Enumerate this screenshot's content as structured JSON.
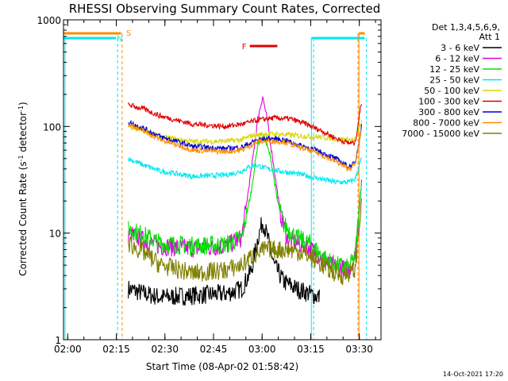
{
  "chart_data": {
    "type": "line",
    "title": "RHESSI Observing Summary Count Rates, Corrected",
    "xlabel": "Start Time (08-Apr-02 01:58:42)",
    "ylabel": "Corrected Count Rate (s⁻¹ detector⁻¹)",
    "ylabel_parts": {
      "main": "Corrected Count Rate (s",
      "sup1": "-1",
      "mid": " detector",
      "sup2": "-1",
      "end": ")"
    },
    "yscale": "log",
    "ylim": [
      1,
      1000
    ],
    "xlim_minutes": [
      0,
      98
    ],
    "x_ticks": [
      {
        "label": "02:00",
        "t": 1.3
      },
      {
        "label": "02:15",
        "t": 16.3
      },
      {
        "label": "02:30",
        "t": 31.3
      },
      {
        "label": "02:45",
        "t": 46.3
      },
      {
        "label": "03:00",
        "t": 61.3
      },
      {
        "label": "03:15",
        "t": 76.3
      },
      {
        "label": "03:30",
        "t": 91.3
      }
    ],
    "y_ticks": [
      {
        "label": "1",
        "v": 1
      },
      {
        "label": "10",
        "v": 10
      },
      {
        "label": "100",
        "v": 100
      },
      {
        "label": "1000",
        "v": 1000
      }
    ],
    "legend": {
      "header": [
        "Det 1,3,4,5,6,9,",
        "Att 1"
      ],
      "entries": [
        {
          "label": "3 - 6 keV",
          "color": "#000000"
        },
        {
          "label": "6 - 12 keV",
          "color": "#e000e0"
        },
        {
          "label": "12 - 25 keV",
          "color": "#00e000"
        },
        {
          "label": "25 - 50 keV",
          "color": "#00e8f0"
        },
        {
          "label": "50 - 100 keV",
          "color": "#d8d800"
        },
        {
          "label": "100 - 300 keV",
          "color": "#e00000"
        },
        {
          "label": "300 - 800 keV",
          "color": "#0000d0"
        },
        {
          "label": "800 - 7000 keV",
          "color": "#ff8c00"
        },
        {
          "label": "7000 - 15000 keV",
          "color": "#808000"
        }
      ]
    },
    "series": [
      {
        "name": "3 - 6 keV",
        "color": "#000000",
        "points": [
          [
            20,
            3
          ],
          [
            25,
            2.7
          ],
          [
            30,
            2.5
          ],
          [
            40,
            2.6
          ],
          [
            50,
            2.7
          ],
          [
            55,
            3
          ],
          [
            58,
            4.5
          ],
          [
            60,
            9
          ],
          [
            61.5,
            13
          ],
          [
            63,
            9
          ],
          [
            65,
            5
          ],
          [
            68,
            3.5
          ],
          [
            72,
            3
          ],
          [
            76,
            2.7
          ],
          [
            79,
            2.5
          ]
        ]
      },
      {
        "name": "6 - 12 keV",
        "color": "#e000e0",
        "points": [
          [
            20,
            10
          ],
          [
            25,
            8.5
          ],
          [
            30,
            7.5
          ],
          [
            40,
            7.2
          ],
          [
            50,
            7.5
          ],
          [
            55,
            9
          ],
          [
            58,
            40
          ],
          [
            60,
            120
          ],
          [
            61.5,
            190
          ],
          [
            63,
            110
          ],
          [
            65,
            40
          ],
          [
            67,
            15
          ],
          [
            69,
            9
          ],
          [
            72,
            8
          ],
          [
            75,
            7.5
          ],
          [
            78,
            6.5
          ],
          [
            82,
            5
          ],
          [
            88,
            4.5
          ],
          [
            90,
            6
          ],
          [
            92,
            30
          ]
        ]
      },
      {
        "name": "12 - 25 keV",
        "color": "#00e000",
        "points": [
          [
            20,
            11
          ],
          [
            25,
            9.5
          ],
          [
            30,
            8
          ],
          [
            40,
            7.6
          ],
          [
            50,
            7.8
          ],
          [
            55,
            9
          ],
          [
            58,
            25
          ],
          [
            60,
            70
          ],
          [
            62,
            80
          ],
          [
            64,
            50
          ],
          [
            66,
            20
          ],
          [
            68,
            12
          ],
          [
            72,
            9
          ],
          [
            76,
            8
          ],
          [
            80,
            6
          ],
          [
            84,
            5
          ],
          [
            88,
            4.7
          ],
          [
            90,
            6
          ],
          [
            92,
            30
          ]
        ]
      },
      {
        "name": "25 - 50 keV",
        "color": "#00e8f0",
        "points": [
          [
            20,
            50
          ],
          [
            25,
            43
          ],
          [
            30,
            38
          ],
          [
            40,
            34
          ],
          [
            50,
            35
          ],
          [
            55,
            38
          ],
          [
            58,
            43
          ],
          [
            60,
            43
          ],
          [
            63,
            40
          ],
          [
            67,
            38
          ],
          [
            72,
            36
          ],
          [
            78,
            33
          ],
          [
            84,
            30
          ],
          [
            88,
            30
          ],
          [
            90,
            32
          ],
          [
            92,
            50
          ]
        ]
      },
      {
        "name": "50 - 100 keV",
        "color": "#d8d800",
        "points": [
          [
            20,
            100
          ],
          [
            25,
            90
          ],
          [
            30,
            80
          ],
          [
            40,
            72
          ],
          [
            50,
            73
          ],
          [
            55,
            75
          ],
          [
            58,
            82
          ],
          [
            62,
            85
          ],
          [
            66,
            85
          ],
          [
            72,
            82
          ],
          [
            78,
            80
          ],
          [
            84,
            77
          ],
          [
            88,
            75
          ],
          [
            90,
            75
          ],
          [
            92,
            110
          ]
        ]
      },
      {
        "name": "100 - 300 keV",
        "color": "#e00000",
        "points": [
          [
            20,
            160
          ],
          [
            25,
            145
          ],
          [
            30,
            125
          ],
          [
            40,
            105
          ],
          [
            50,
            100
          ],
          [
            55,
            105
          ],
          [
            60,
            115
          ],
          [
            65,
            120
          ],
          [
            70,
            118
          ],
          [
            75,
            105
          ],
          [
            80,
            90
          ],
          [
            85,
            75
          ],
          [
            88,
            70
          ],
          [
            90,
            70
          ],
          [
            92,
            170
          ]
        ]
      },
      {
        "name": "300 - 800 keV",
        "color": "#0000d0",
        "points": [
          [
            20,
            110
          ],
          [
            25,
            95
          ],
          [
            30,
            80
          ],
          [
            40,
            65
          ],
          [
            50,
            62
          ],
          [
            55,
            64
          ],
          [
            60,
            75
          ],
          [
            64,
            77
          ],
          [
            68,
            75
          ],
          [
            72,
            68
          ],
          [
            78,
            60
          ],
          [
            84,
            50
          ],
          [
            88,
            42
          ],
          [
            90,
            45
          ],
          [
            92,
            100
          ]
        ]
      },
      {
        "name": "800 - 7000 keV",
        "color": "#ff8c00",
        "points": [
          [
            20,
            105
          ],
          [
            25,
            90
          ],
          [
            30,
            75
          ],
          [
            40,
            60
          ],
          [
            50,
            58
          ],
          [
            55,
            60
          ],
          [
            60,
            72
          ],
          [
            64,
            73
          ],
          [
            68,
            72
          ],
          [
            72,
            65
          ],
          [
            78,
            57
          ],
          [
            84,
            47
          ],
          [
            88,
            40
          ],
          [
            90,
            44
          ],
          [
            92,
            95
          ]
        ]
      },
      {
        "name": "7000 - 15000 keV",
        "color": "#808000",
        "points": [
          [
            20,
            8
          ],
          [
            25,
            6.5
          ],
          [
            30,
            5
          ],
          [
            40,
            4.2
          ],
          [
            50,
            4.5
          ],
          [
            55,
            5
          ],
          [
            58,
            6
          ],
          [
            62,
            7
          ],
          [
            66,
            7
          ],
          [
            70,
            7
          ],
          [
            74,
            6.5
          ],
          [
            78,
            5.5
          ],
          [
            82,
            4.5
          ],
          [
            86,
            4
          ],
          [
            90,
            4.5
          ],
          [
            92,
            20
          ]
        ]
      }
    ],
    "annotations": {
      "S_label": "S",
      "N_label": "N",
      "F_label": "F",
      "S_bars_minutes": [
        [
          0,
          17.8
        ],
        [
          91.2,
          93
        ]
      ],
      "N_bars_minutes": [
        [
          0,
          16.2
        ],
        [
          76.5,
          93
        ]
      ],
      "F_bar_minutes": [
        [
          57.5,
          66
        ]
      ],
      "S_boundaries_minutes": [
        18.1,
        90.9
      ],
      "N_boundaries_minutes": [
        16.7,
        77.2,
        93.5
      ]
    }
  },
  "timestamp": "14-Oct-2021 17:20"
}
